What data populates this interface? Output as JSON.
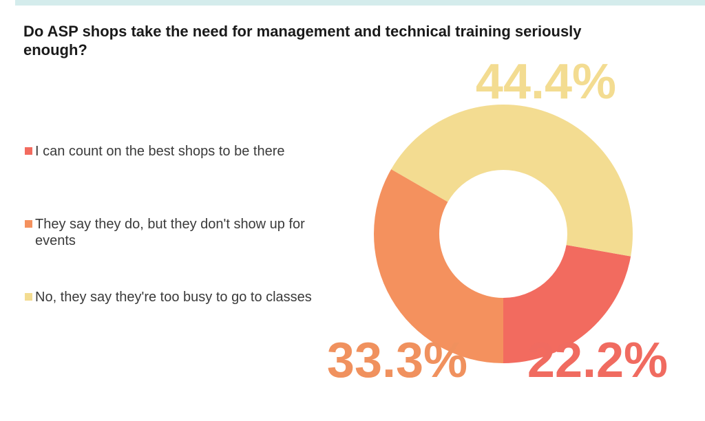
{
  "chart_data": {
    "type": "pie",
    "title": "Do ASP shops take the need for management and technical training seriously enough?",
    "categories": [
      "I can count on the best shops to be there",
      "They say they do, but they don't show up for events",
      "No, they say they're too busy to go to classes"
    ],
    "values": [
      22.2,
      33.3,
      44.4
    ],
    "value_labels": [
      "22.2%",
      "33.3%",
      "44.4%"
    ],
    "colors": [
      "#f26b5f",
      "#f4915e",
      "#f3dc91"
    ],
    "label_colors": [
      "#f06b60",
      "#f0915e",
      "#f3dc91"
    ],
    "donut": true,
    "legend_position": "left"
  }
}
